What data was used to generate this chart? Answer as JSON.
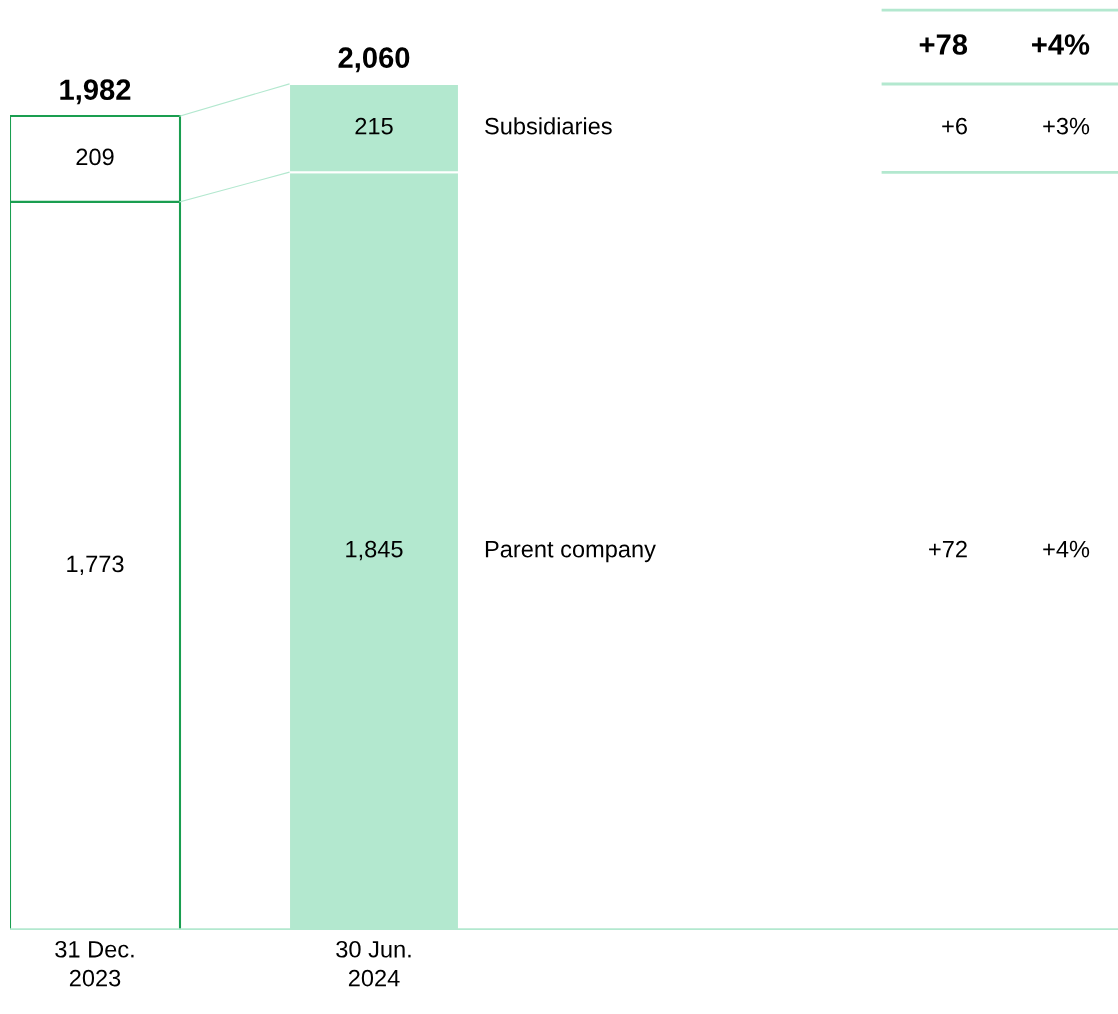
{
  "chart_data": {
    "type": "bar",
    "stacked": true,
    "categories": [
      "31 Dec.\n2023",
      "30 Jun.\n2024"
    ],
    "series": [
      {
        "name": "Parent company",
        "colors": [
          "#ffffff",
          "#b3e8cf"
        ],
        "values": [
          1773,
          1845
        ],
        "value_labels": [
          "1,773",
          "1,845"
        ]
      },
      {
        "name": "Subsidiaries",
        "colors": [
          "#ffffff",
          "#b3e8cf"
        ],
        "values": [
          209,
          215
        ],
        "value_labels": [
          "209",
          "215"
        ]
      }
    ],
    "totals": [
      "1,982",
      "2,060"
    ],
    "annotations": [
      "+78",
      "+4%",
      "+6",
      "+3%",
      "+72",
      "+4%"
    ]
  }
}
